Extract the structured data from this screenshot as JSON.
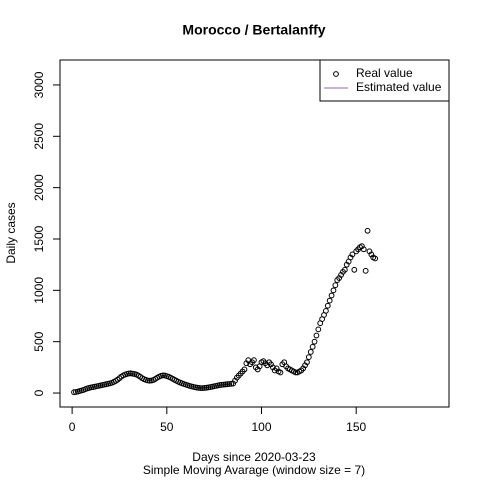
{
  "chart_data": {
    "type": "scatter",
    "title": "Morocco / Bertalanffy",
    "x_label": "Days since 2020-03-23",
    "subtitle": "Simple Moving Avarage (window size = 7)",
    "y_label": "Daily cases",
    "xlim": [
      -6.4,
      199
    ],
    "xticks": [
      0,
      50,
      100,
      150
    ],
    "ylim": [
      -136,
      3243
    ],
    "yticks": [
      0,
      500,
      1000,
      1500,
      2000,
      2500,
      3000
    ],
    "legend_position": "topright",
    "series": [
      {
        "name": "Real value",
        "color": "#000000",
        "marker": "circle",
        "x": [
          1,
          2,
          3,
          4,
          5,
          6,
          7,
          8,
          9,
          10,
          11,
          12,
          13,
          14,
          15,
          16,
          17,
          18,
          19,
          20,
          21,
          22,
          23,
          24,
          25,
          26,
          27,
          28,
          29,
          30,
          31,
          32,
          33,
          34,
          35,
          36,
          37,
          38,
          39,
          40,
          41,
          42,
          43,
          44,
          45,
          46,
          47,
          48,
          49,
          50,
          51,
          52,
          53,
          54,
          55,
          56,
          57,
          58,
          59,
          60,
          61,
          62,
          63,
          64,
          65,
          66,
          67,
          68,
          69,
          70,
          71,
          72,
          73,
          74,
          75,
          76,
          77,
          78,
          79,
          80,
          81,
          82,
          83,
          84,
          85,
          86,
          87,
          88,
          89,
          90,
          91,
          92,
          93,
          94,
          95,
          96,
          97,
          98,
          99,
          100,
          101,
          102,
          103,
          104,
          105,
          106,
          107,
          108,
          109,
          110,
          111,
          112,
          113,
          114,
          115,
          116,
          117,
          118,
          119,
          120,
          121,
          122,
          123,
          124,
          125,
          126,
          127,
          128,
          129,
          130,
          131,
          132,
          133,
          134,
          135,
          136,
          137,
          138,
          139,
          140,
          141,
          142,
          143,
          144,
          145,
          146,
          147,
          148,
          149,
          150,
          151,
          152,
          153,
          154,
          155,
          156,
          157,
          158,
          159,
          160
        ],
        "values": [
          8,
          10,
          14,
          20,
          25,
          30,
          38,
          45,
          50,
          55,
          58,
          62,
          66,
          70,
          74,
          78,
          82,
          86,
          90,
          95,
          100,
          108,
          118,
          130,
          145,
          160,
          172,
          180,
          186,
          190,
          192,
          188,
          185,
          180,
          170,
          158,
          145,
          135,
          128,
          122,
          120,
          122,
          128,
          138,
          150,
          160,
          168,
          172,
          170,
          165,
          158,
          150,
          140,
          130,
          120,
          110,
          102,
          95,
          88,
          82,
          76,
          70,
          65,
          60,
          56,
          52,
          50,
          48,
          48,
          50,
          52,
          55,
          58,
          62,
          66,
          70,
          74,
          78,
          80,
          82,
          84,
          86,
          88,
          90,
          92,
          120,
          150,
          170,
          190,
          210,
          230,
          290,
          320,
          280,
          300,
          320,
          250,
          230,
          260,
          300,
          310,
          290,
          270,
          300,
          280,
          250,
          220,
          240,
          210,
          200,
          280,
          300,
          260,
          240,
          230,
          220,
          210,
          200,
          200,
          210,
          220,
          240,
          270,
          300,
          350,
          400,
          450,
          500,
          560,
          620,
          680,
          720,
          760,
          800,
          850,
          900,
          950,
          1000,
          1050,
          1100,
          1120,
          1150,
          1180,
          1200,
          1250,
          1280,
          1320,
          1350,
          1200,
          1380,
          1400,
          1420,
          1430,
          1400,
          1190,
          1580,
          1380,
          1350,
          1320,
          1310
        ]
      },
      {
        "name": "Estimated value",
        "color": "#9a5fb4",
        "marker": "line",
        "x": [],
        "values": []
      }
    ]
  }
}
